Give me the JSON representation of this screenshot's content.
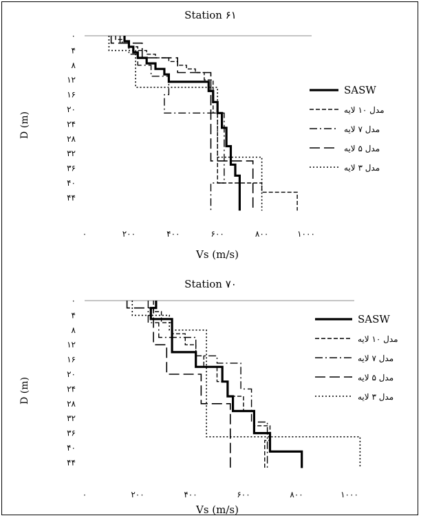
{
  "chart_data": [
    {
      "type": "line",
      "title": "Station ۶۱",
      "xlabel": "Vs (m/s)",
      "ylabel": "D (m)",
      "xlim": [
        0,
        1000
      ],
      "ylim": [
        0,
        44
      ],
      "y_inverted": true,
      "x_ticks": [
        0,
        200,
        400,
        600,
        800,
        1000
      ],
      "x_tick_labels": [
        "۰",
        "۲۰۰",
        "۴۰۰",
        "۶۰۰",
        "۸۰۰",
        "۱۰۰۰"
      ],
      "y_ticks": [
        0,
        4,
        8,
        12,
        16,
        20,
        24,
        28,
        32,
        36,
        40,
        44
      ],
      "y_tick_labels": [
        "۰",
        "۴",
        "۸",
        "۱۲",
        "۱۶",
        "۲۰",
        "۲۴",
        "۲۸",
        "۳۲",
        "۳۶",
        "۴۰",
        "۴۴"
      ],
      "legend_position": "right",
      "series": [
        {
          "name": "SASW",
          "style": "solid",
          "width": 3.2,
          "points": [
            [
              180,
              0
            ],
            [
              180,
              1.5
            ],
            [
              200,
              1.5
            ],
            [
              200,
              3
            ],
            [
              220,
              3
            ],
            [
              220,
              4.5
            ],
            [
              240,
              4.5
            ],
            [
              240,
              6
            ],
            [
              280,
              6
            ],
            [
              280,
              7.5
            ],
            [
              320,
              7.5
            ],
            [
              320,
              9
            ],
            [
              360,
              9
            ],
            [
              360,
              10.5
            ],
            [
              380,
              10.5
            ],
            [
              380,
              12.5
            ],
            [
              560,
              12.5
            ],
            [
              560,
              15
            ],
            [
              580,
              15
            ],
            [
              580,
              18
            ],
            [
              600,
              18
            ],
            [
              600,
              21
            ],
            [
              620,
              21
            ],
            [
              620,
              25
            ],
            [
              640,
              25
            ],
            [
              640,
              30
            ],
            [
              660,
              30
            ],
            [
              660,
              35
            ],
            [
              680,
              35
            ],
            [
              680,
              38
            ],
            [
              700,
              38
            ],
            [
              700,
              47.5
            ]
          ]
        },
        {
          "name": "مدل ۱۰ لایه",
          "style": "dashed",
          "width": 1.4,
          "points": [
            [
              140,
              0
            ],
            [
              140,
              1
            ],
            [
              170,
              1
            ],
            [
              170,
              2
            ],
            [
              200,
              2
            ],
            [
              200,
              3
            ],
            [
              240,
              3
            ],
            [
              240,
              4
            ],
            [
              280,
              4
            ],
            [
              280,
              5
            ],
            [
              320,
              5
            ],
            [
              320,
              6
            ],
            [
              380,
              6
            ],
            [
              380,
              7
            ],
            [
              420,
              7
            ],
            [
              420,
              8
            ],
            [
              460,
              8
            ],
            [
              460,
              9
            ],
            [
              500,
              9
            ],
            [
              500,
              10
            ],
            [
              540,
              10
            ],
            [
              540,
              12
            ],
            [
              580,
              12
            ],
            [
              580,
              21
            ],
            [
              600,
              21
            ],
            [
              600,
              40
            ],
            [
              800,
              40
            ],
            [
              800,
              42.5
            ],
            [
              960,
              42.5
            ],
            [
              960,
              47.5
            ]
          ]
        },
        {
          "name": "مدل ۷ لایه",
          "style": "dashdot",
          "width": 1.4,
          "points": [
            [
              160,
              0
            ],
            [
              160,
              2
            ],
            [
              200,
              2
            ],
            [
              200,
              5
            ],
            [
              240,
              5
            ],
            [
              240,
              8
            ],
            [
              300,
              8
            ],
            [
              300,
              11
            ],
            [
              380,
              11
            ],
            [
              380,
              16
            ],
            [
              360,
              16
            ],
            [
              360,
              21
            ],
            [
              630,
              21
            ],
            [
              630,
              40
            ],
            [
              570,
              40
            ],
            [
              570,
              47.5
            ]
          ]
        },
        {
          "name": "مدل ۵ لایه",
          "style": "longdash",
          "width": 1.6,
          "points": [
            [
              120,
              0
            ],
            [
              120,
              2
            ],
            [
              260,
              2
            ],
            [
              260,
              6
            ],
            [
              420,
              6
            ],
            [
              420,
              10
            ],
            [
              570,
              10
            ],
            [
              570,
              34
            ],
            [
              760,
              34
            ],
            [
              760,
              47.5
            ]
          ]
        },
        {
          "name": "مدل ۳ لایه",
          "style": "dotted",
          "width": 1.6,
          "points": [
            [
              110,
              0
            ],
            [
              110,
              4
            ],
            [
              230,
              4
            ],
            [
              230,
              14
            ],
            [
              600,
              14
            ],
            [
              600,
              33
            ],
            [
              800,
              33
            ],
            [
              800,
              47.5
            ]
          ]
        }
      ]
    },
    {
      "type": "line",
      "title": "Station ۷۰",
      "xlabel": "Vs (m/s)",
      "ylabel": "D (m)",
      "xlim": [
        0,
        1000
      ],
      "ylim": [
        0,
        44
      ],
      "y_inverted": true,
      "x_ticks": [
        0,
        200,
        400,
        600,
        800,
        1000
      ],
      "x_tick_labels": [
        "۰",
        "۲۰۰",
        "۴۰۰",
        "۶۰۰",
        "۸۰۰",
        "۱۰۰۰"
      ],
      "y_ticks": [
        0,
        4,
        8,
        12,
        16,
        20,
        24,
        28,
        32,
        36,
        40,
        44
      ],
      "y_tick_labels": [
        "۰",
        "۴",
        "۸",
        "۱۲",
        "۱۶",
        "۲۰",
        "۲۴",
        "۲۸",
        "۳۲",
        "۳۶",
        "۴۰",
        "۴۴"
      ],
      "legend_position": "right",
      "series": [
        {
          "name": "SASW",
          "style": "solid",
          "width": 3.2,
          "points": [
            [
              270,
              0
            ],
            [
              270,
              2
            ],
            [
              250,
              2
            ],
            [
              250,
              5
            ],
            [
              330,
              5
            ],
            [
              330,
              14
            ],
            [
              420,
              14
            ],
            [
              420,
              18
            ],
            [
              520,
              18
            ],
            [
              520,
              22
            ],
            [
              540,
              22
            ],
            [
              540,
              26
            ],
            [
              560,
              26
            ],
            [
              560,
              30
            ],
            [
              640,
              30
            ],
            [
              640,
              36
            ],
            [
              700,
              36
            ],
            [
              700,
              41
            ],
            [
              820,
              41
            ],
            [
              820,
              45.5
            ]
          ]
        },
        {
          "name": "مدل ۱۰ لایه",
          "style": "dashed",
          "width": 1.4,
          "points": [
            [
              260,
              0
            ],
            [
              260,
              3
            ],
            [
              290,
              3
            ],
            [
              290,
              6
            ],
            [
              330,
              6
            ],
            [
              330,
              9
            ],
            [
              380,
              9
            ],
            [
              380,
              12
            ],
            [
              420,
              12
            ],
            [
              420,
              15
            ],
            [
              450,
              15
            ],
            [
              450,
              18
            ],
            [
              500,
              18
            ],
            [
              500,
              22
            ],
            [
              540,
              22
            ],
            [
              540,
              26
            ],
            [
              600,
              26
            ],
            [
              600,
              30
            ],
            [
              640,
              30
            ],
            [
              640,
              34
            ],
            [
              700,
              34
            ],
            [
              700,
              38
            ],
            [
              680,
              38
            ],
            [
              680,
              45.5
            ]
          ]
        },
        {
          "name": "مدل ۷ لایه",
          "style": "dashdot",
          "width": 1.4,
          "points": [
            [
              240,
              0
            ],
            [
              240,
              6
            ],
            [
              280,
              6
            ],
            [
              280,
              10
            ],
            [
              420,
              10
            ],
            [
              420,
              15
            ],
            [
              500,
              15
            ],
            [
              500,
              17
            ],
            [
              590,
              17
            ],
            [
              590,
              24
            ],
            [
              630,
              24
            ],
            [
              630,
              33
            ],
            [
              690,
              33
            ],
            [
              690,
              45.5
            ]
          ]
        },
        {
          "name": "مدل ۵ لایه",
          "style": "longdash",
          "width": 1.6,
          "points": [
            [
              160,
              0
            ],
            [
              160,
              2
            ],
            [
              260,
              2
            ],
            [
              260,
              12
            ],
            [
              310,
              12
            ],
            [
              310,
              20
            ],
            [
              440,
              20
            ],
            [
              440,
              28
            ],
            [
              550,
              28
            ],
            [
              550,
              45.5
            ]
          ]
        },
        {
          "name": "مدل ۳ لایه",
          "style": "dotted",
          "width": 1.6,
          "points": [
            [
              180,
              0
            ],
            [
              180,
              4
            ],
            [
              320,
              4
            ],
            [
              320,
              8
            ],
            [
              460,
              8
            ],
            [
              460,
              37
            ],
            [
              1040,
              37
            ],
            [
              1040,
              45.5
            ]
          ]
        }
      ]
    }
  ]
}
